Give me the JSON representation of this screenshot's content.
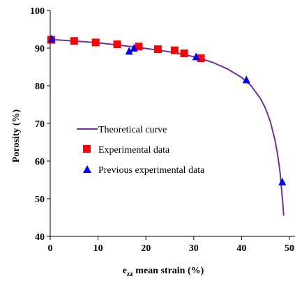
{
  "chart_data": {
    "type": "scatter",
    "xlabel": {
      "main": "e",
      "sub": "zz",
      "rest": " mean strain (%)"
    },
    "ylabel": "Porosity (%)",
    "xlim": [
      0,
      50
    ],
    "ylim": [
      40,
      100
    ],
    "x_ticks": [
      "0",
      "10",
      "20",
      "30",
      "40",
      "50"
    ],
    "y_ticks": [
      "40",
      "50",
      "60",
      "70",
      "80",
      "90",
      "100"
    ],
    "grid": false,
    "legend_placement": "center-left",
    "series": [
      {
        "name": "Theoretical curve",
        "kind": "line",
        "color": "#7030a0",
        "x": [
          0,
          5,
          10,
          15,
          20,
          25,
          28,
          31,
          34,
          37,
          40,
          42,
          44,
          45,
          46,
          47,
          47.5,
          48,
          48.3,
          48.6,
          48.8
        ],
        "y": [
          92.3,
          91.9,
          91.4,
          90.7,
          89.9,
          89.0,
          88.3,
          87.4,
          86.2,
          84.5,
          82.2,
          80.0,
          76.5,
          74.0,
          70.5,
          65.5,
          62.0,
          57.5,
          53.5,
          49.0,
          45.5
        ]
      },
      {
        "name": "Experimental data",
        "kind": "square",
        "color": "#ff0000",
        "x": [
          0.2,
          5,
          9.5,
          14,
          18.5,
          22.5,
          26,
          28,
          31.5
        ],
        "y": [
          92.2,
          91.9,
          91.5,
          91.0,
          90.4,
          89.7,
          89.4,
          88.6,
          87.3
        ]
      },
      {
        "name": "Previous experimental data",
        "kind": "triangle",
        "color": "#0000ff",
        "x": [
          0.3,
          16.5,
          17.5,
          30.5,
          41,
          48.5
        ],
        "y": [
          92.5,
          89.2,
          90.0,
          87.7,
          81.6,
          54.5
        ]
      }
    ]
  }
}
